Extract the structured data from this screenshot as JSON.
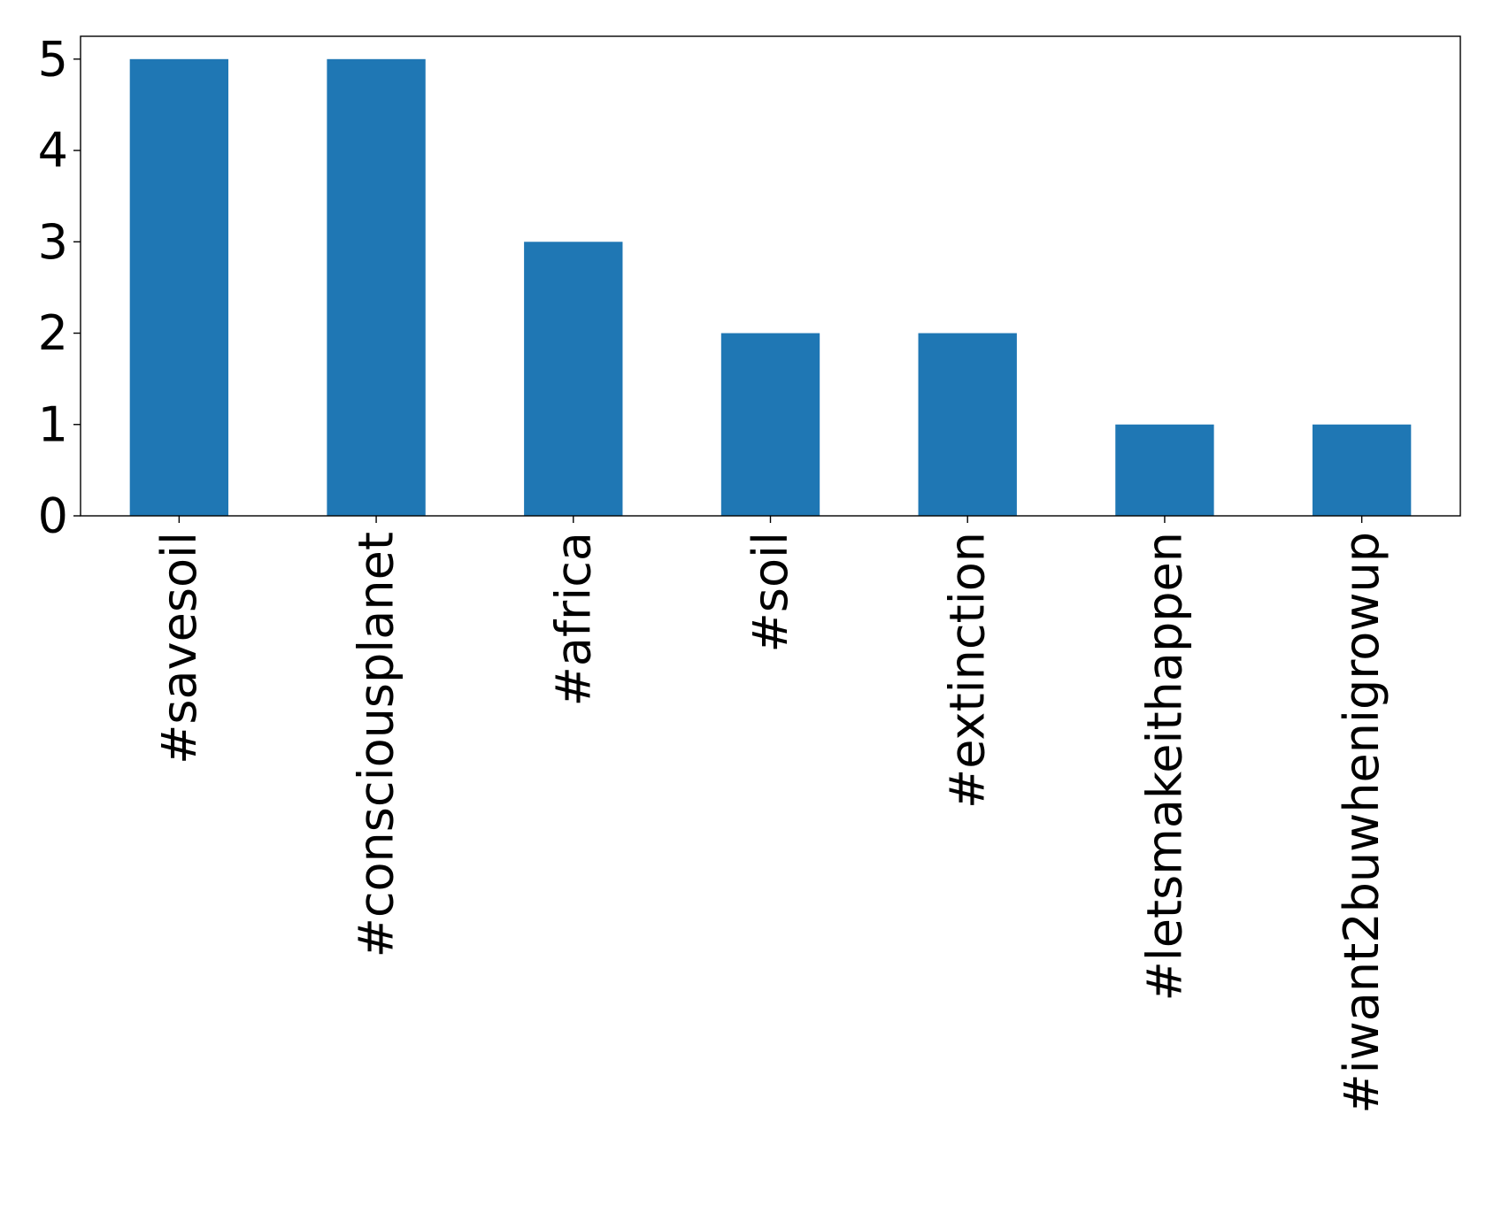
{
  "chart_data": {
    "type": "bar",
    "title": "",
    "xlabel": "",
    "ylabel": "",
    "categories": [
      "#savesoil",
      "#consciousplanet",
      "#africa",
      "#soil",
      "#extinction",
      "#letsmakeithappen",
      "#iwant2buwhenigrowup"
    ],
    "values": [
      5,
      5,
      3,
      2,
      2,
      1,
      1
    ],
    "ylim": [
      0,
      5.25
    ],
    "yticks": [
      0,
      1,
      2,
      3,
      4,
      5
    ],
    "bar_color": "#1f77b4",
    "grid": false,
    "legend": "none",
    "xtick_rotation": "vertical"
  }
}
